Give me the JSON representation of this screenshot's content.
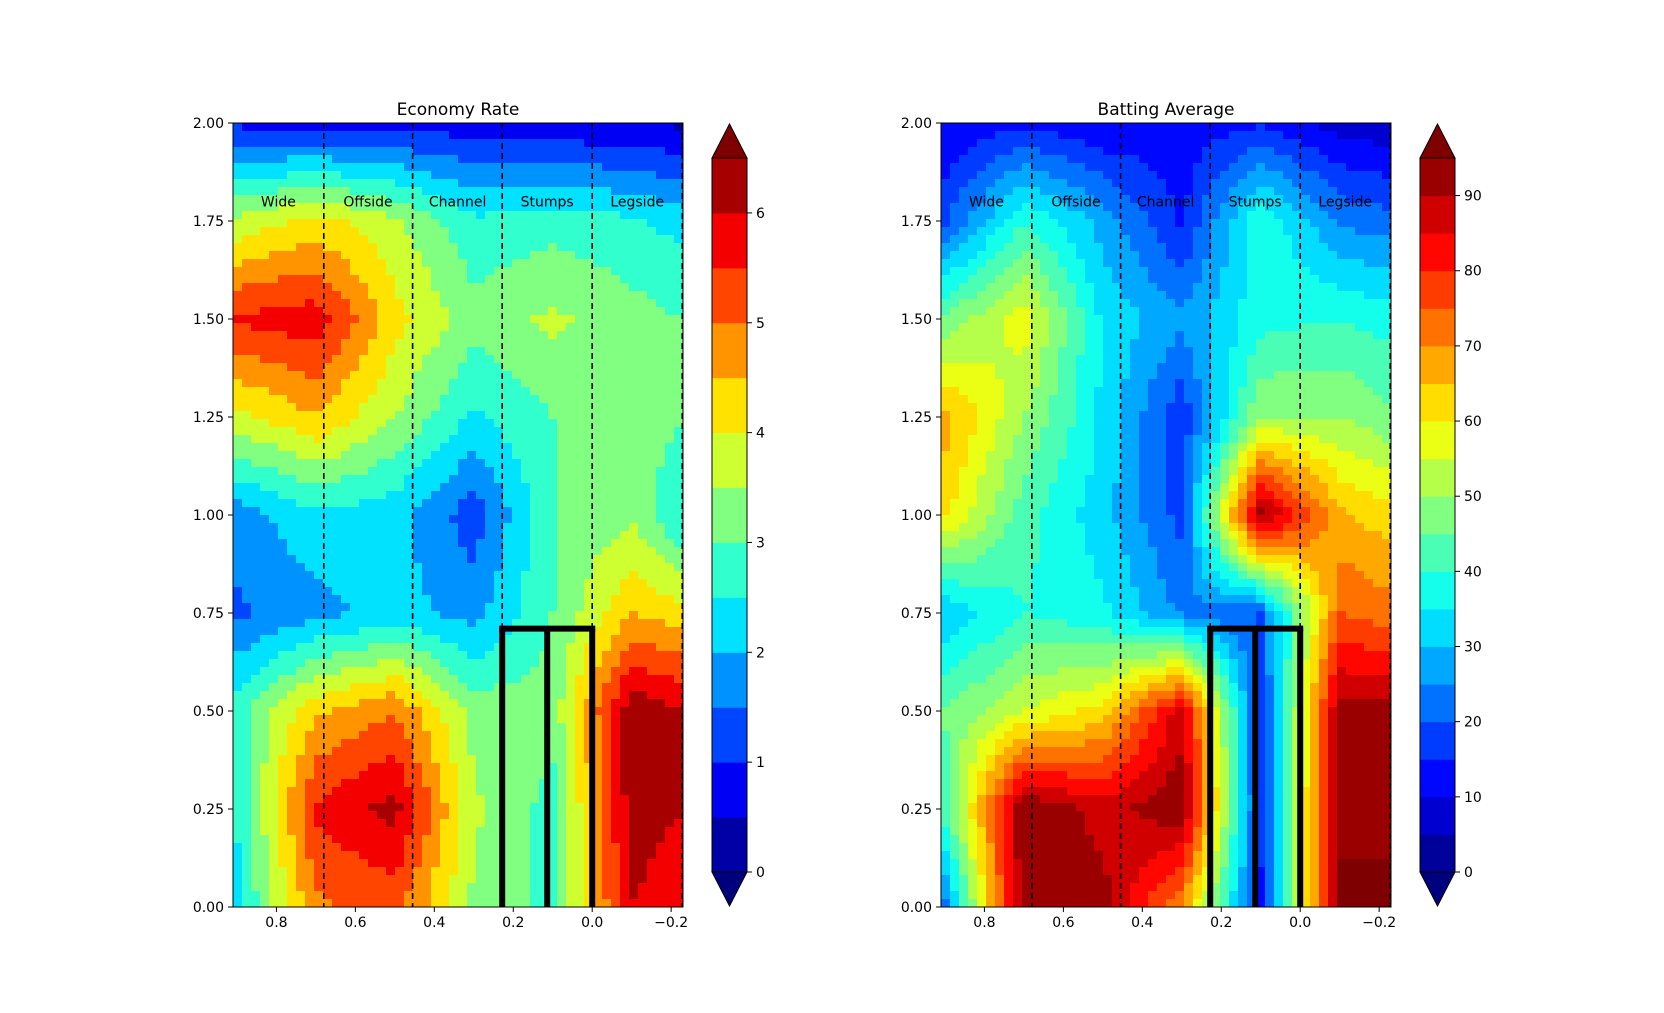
{
  "chart_data": [
    {
      "type": "heatmap",
      "subtype": "filled-contour",
      "title": "Economy Rate",
      "xlabel": "",
      "ylabel": "",
      "xlim": [
        0.91,
        -0.23
      ],
      "ylim": [
        0.0,
        2.0
      ],
      "x_ticks": [
        0.8,
        0.6,
        0.4,
        0.2,
        0.0,
        -0.2
      ],
      "x_tick_labels": [
        "0.8",
        "0.6",
        "0.4",
        "0.2",
        "0.0",
        "−0.2"
      ],
      "y_ticks": [
        0.0,
        0.25,
        0.5,
        0.75,
        1.0,
        1.25,
        1.5,
        1.75,
        2.0
      ],
      "y_tick_labels": [
        "0.00",
        "0.25",
        "0.50",
        "0.75",
        "1.00",
        "1.25",
        "1.50",
        "1.75",
        "2.00"
      ],
      "zone_lines_x": [
        0.68,
        0.455,
        0.228,
        0.0,
        -0.228
      ],
      "zones": [
        {
          "label": "Wide",
          "x": 0.795
        },
        {
          "label": "Offside",
          "x": 0.568
        },
        {
          "label": "Channel",
          "x": 0.341
        },
        {
          "label": "Stumps",
          "x": 0.114
        },
        {
          "label": "Legside",
          "x": -0.114
        }
      ],
      "zone_label_y": 1.8,
      "stumps": {
        "xs": [
          0.228,
          0.114,
          0.0
        ],
        "top": 0.71
      },
      "colorbar": {
        "vmin": 0,
        "vmax": 6.5,
        "levels": 13,
        "extend": "both",
        "ticks": [
          0,
          1,
          2,
          3,
          4,
          5,
          6
        ],
        "tick_labels": [
          "0",
          "1",
          "2",
          "3",
          "4",
          "5",
          "6"
        ]
      },
      "grid": {
        "xs": [
          0.91,
          0.7,
          0.5,
          0.3,
          0.1,
          -0.1,
          -0.23
        ],
        "ys": [
          0.0,
          0.25,
          0.5,
          0.75,
          1.0,
          1.25,
          1.5,
          1.75,
          2.0
        ],
        "z": [
          [
            2.2,
            4.9,
            5.2,
            3.4,
            2.8,
            6.0,
            5.6
          ],
          [
            2.4,
            5.6,
            6.2,
            3.6,
            2.8,
            6.3,
            6.0
          ],
          [
            2.7,
            4.4,
            5.0,
            3.3,
            3.2,
            6.4,
            6.0
          ],
          [
            1.4,
            1.8,
            2.2,
            1.8,
            3.0,
            4.5,
            4.2
          ],
          [
            1.7,
            2.4,
            2.2,
            1.2,
            3.0,
            3.4,
            2.4
          ],
          [
            3.8,
            4.5,
            3.5,
            2.4,
            3.0,
            3.4,
            3.0
          ],
          [
            5.6,
            5.8,
            4.2,
            3.2,
            3.6,
            3.2,
            3.0
          ],
          [
            3.6,
            4.2,
            3.6,
            2.6,
            2.8,
            2.6,
            2.3
          ],
          [
            0.9,
            0.8,
            0.8,
            0.7,
            0.6,
            0.5,
            0.4
          ]
        ]
      }
    },
    {
      "type": "heatmap",
      "subtype": "filled-contour",
      "title": "Batting Average",
      "xlabel": "",
      "ylabel": "",
      "xlim": [
        0.91,
        -0.23
      ],
      "ylim": [
        0.0,
        2.0
      ],
      "x_ticks": [
        0.8,
        0.6,
        0.4,
        0.2,
        0.0,
        -0.2
      ],
      "x_tick_labels": [
        "0.8",
        "0.6",
        "0.4",
        "0.2",
        "0.0",
        "−0.2"
      ],
      "y_ticks": [
        0.0,
        0.25,
        0.5,
        0.75,
        1.0,
        1.25,
        1.5,
        1.75,
        2.0
      ],
      "y_tick_labels": [
        "0.00",
        "0.25",
        "0.50",
        "0.75",
        "1.00",
        "1.25",
        "1.50",
        "1.75",
        "2.00"
      ],
      "zone_lines_x": [
        0.68,
        0.455,
        0.228,
        0.0,
        -0.228
      ],
      "zones": [
        {
          "label": "Wide",
          "x": 0.795
        },
        {
          "label": "Offside",
          "x": 0.568
        },
        {
          "label": "Channel",
          "x": 0.341
        },
        {
          "label": "Stumps",
          "x": 0.114
        },
        {
          "label": "Legside",
          "x": -0.114
        }
      ],
      "zone_label_y": 1.8,
      "stumps": {
        "xs": [
          0.228,
          0.114,
          0.0
        ],
        "top": 0.71
      },
      "colorbar": {
        "vmin": 0,
        "vmax": 95,
        "levels": 19,
        "extend": "both",
        "ticks": [
          0,
          10,
          20,
          30,
          40,
          50,
          60,
          70,
          80,
          90
        ],
        "tick_labels": [
          "0",
          "10",
          "20",
          "30",
          "40",
          "50",
          "60",
          "70",
          "80",
          "90"
        ]
      },
      "grid": {
        "xs": [
          0.91,
          0.7,
          0.5,
          0.3,
          0.1,
          -0.1,
          -0.23
        ],
        "ys": [
          0.0,
          0.25,
          0.5,
          0.75,
          1.0,
          1.25,
          1.5,
          1.75,
          2.0
        ],
        "z": [
          [
            20,
            95,
            92,
            70,
            14,
            96,
            96
          ],
          [
            40,
            95,
            88,
            94,
            16,
            94,
            94
          ],
          [
            45,
            55,
            62,
            88,
            16,
            92,
            92
          ],
          [
            30,
            40,
            36,
            24,
            20,
            75,
            72
          ],
          [
            62,
            42,
            32,
            18,
            93,
            66,
            62
          ],
          [
            68,
            50,
            34,
            16,
            50,
            50,
            46
          ],
          [
            46,
            58,
            34,
            26,
            38,
            40,
            38
          ],
          [
            18,
            40,
            28,
            14,
            40,
            24,
            22
          ],
          [
            10,
            14,
            10,
            12,
            14,
            8,
            6
          ]
        ]
      }
    }
  ]
}
